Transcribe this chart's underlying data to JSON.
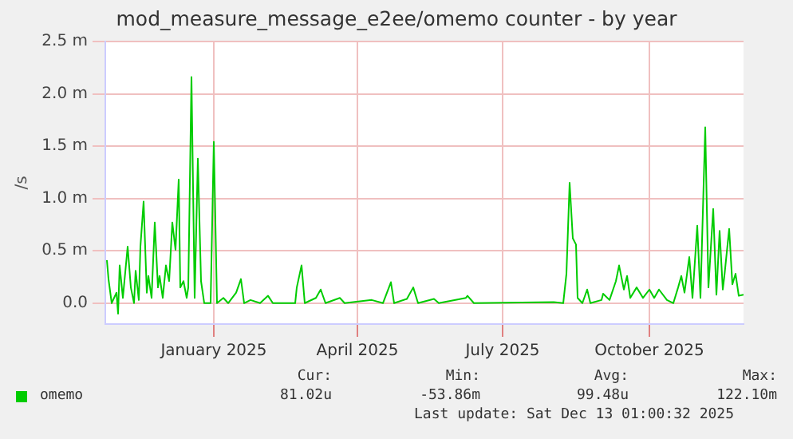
{
  "chart_data": {
    "type": "line",
    "title": "mod_measure_message_e2ee/omemo counter - by year",
    "ylabel": "/s",
    "xlim": [
      "2024-11-08",
      "2025-12-13"
    ],
    "xticks": [
      {
        "value": "2025-01-15",
        "label": "January 2025"
      },
      {
        "value": "2025-04-15",
        "label": "April 2025"
      },
      {
        "value": "2025-07-15",
        "label": "July 2025"
      },
      {
        "value": "2025-10-15",
        "label": "October 2025"
      }
    ],
    "ylim": [
      -0.2,
      2.5
    ],
    "yticks": [
      {
        "value": 0,
        "label": "0.0"
      },
      {
        "value": 0.5,
        "label": "0.5 m"
      },
      {
        "value": 1,
        "label": "1.0 m"
      },
      {
        "value": 1.5,
        "label": "1.5 m"
      },
      {
        "value": 2,
        "label": "2.0 m"
      },
      {
        "value": 2.5,
        "label": "2.5 m"
      }
    ],
    "grid": true,
    "legend": "bottom left",
    "marker": "none",
    "line_style": "solid",
    "x": [
      "2024-11-09",
      "2024-11-10",
      "2024-11-12",
      "2024-11-15",
      "2024-11-16",
      "2024-11-17",
      "2024-11-19",
      "2024-11-22",
      "2024-11-24",
      "2024-11-26",
      "2024-11-27",
      "2024-11-29",
      "2024-11-30",
      "2024-12-02",
      "2024-12-04",
      "2024-12-05",
      "2024-12-07",
      "2024-12-09",
      "2024-12-11",
      "2024-12-12",
      "2024-12-14",
      "2024-12-16",
      "2024-12-18",
      "2024-12-20",
      "2024-12-22",
      "2024-12-24",
      "2024-12-25",
      "2024-12-27",
      "2024-12-29",
      "2024-12-30",
      "2025-01-01",
      "2025-01-03",
      "2025-01-05",
      "2025-01-07",
      "2025-01-09",
      "2025-01-13",
      "2025-01-15",
      "2025-01-17",
      "2025-01-21",
      "2025-01-24",
      "2025-01-29",
      "2025-02-01",
      "2025-02-03",
      "2025-02-07",
      "2025-02-13",
      "2025-02-18",
      "2025-02-21",
      "2025-03-07",
      "2025-03-08",
      "2025-03-11",
      "2025-03-13",
      "2025-03-20",
      "2025-03-23",
      "2025-03-26",
      "2025-04-04",
      "2025-04-07",
      "2025-04-24",
      "2025-05-01",
      "2025-05-06",
      "2025-05-08",
      "2025-05-16",
      "2025-05-20",
      "2025-05-23",
      "2025-06-02",
      "2025-06-05",
      "2025-06-22",
      "2025-06-23",
      "2025-06-27",
      "2025-08-16",
      "2025-08-22",
      "2025-08-24",
      "2025-08-26",
      "2025-08-28",
      "2025-08-30",
      "2025-08-31",
      "2025-09-03",
      "2025-09-06",
      "2025-09-08",
      "2025-09-15",
      "2025-09-16",
      "2025-09-20",
      "2025-09-24",
      "2025-09-26",
      "2025-09-29",
      "2025-10-01",
      "2025-10-03",
      "2025-10-07",
      "2025-10-11",
      "2025-10-15",
      "2025-10-18",
      "2025-10-21",
      "2025-10-26",
      "2025-10-30",
      "2025-11-02",
      "2025-11-04",
      "2025-11-06",
      "2025-11-09",
      "2025-11-11",
      "2025-11-14",
      "2025-11-16",
      "2025-11-19",
      "2025-11-21",
      "2025-11-24",
      "2025-11-26",
      "2025-11-28",
      "2025-11-30",
      "2025-12-01",
      "2025-12-04",
      "2025-12-06",
      "2025-12-08",
      "2025-12-10",
      "2025-12-13"
    ],
    "series": [
      {
        "name": "omemo",
        "color": "#00cc00",
        "values": [
          0.41,
          0.23,
          0,
          0.1,
          -0.1,
          0.36,
          0.05,
          0.54,
          0.15,
          0,
          0.31,
          0.03,
          0.54,
          0.97,
          0.1,
          0.26,
          0.05,
          0.77,
          0.15,
          0.26,
          0.05,
          0.36,
          0.21,
          0.77,
          0.51,
          1.18,
          0.15,
          0.21,
          0.05,
          0.15,
          2.16,
          0.05,
          1.38,
          0.21,
          0,
          0,
          1.54,
          0,
          0.05,
          0,
          0.1,
          0.23,
          0,
          0.03,
          0,
          0.07,
          0,
          0,
          0.15,
          0.36,
          0,
          0.05,
          0.13,
          0,
          0.05,
          0,
          0.03,
          0,
          0.2,
          0,
          0.04,
          0.15,
          0,
          0.04,
          0,
          0.05,
          0.07,
          0,
          0.01,
          0,
          0.28,
          1.15,
          0.62,
          0.56,
          0.05,
          0,
          0.13,
          0,
          0.03,
          0.09,
          0.03,
          0.21,
          0.36,
          0.13,
          0.26,
          0.05,
          0.15,
          0.05,
          0.13,
          0.05,
          0.13,
          0.03,
          0,
          0.15,
          0.26,
          0.1,
          0.44,
          0.05,
          0.74,
          0.05,
          1.68,
          0.15,
          0.9,
          0.08,
          0.69,
          0.13,
          0.26,
          0.71,
          0.18,
          0.28,
          0.07,
          0.08
        ]
      }
    ],
    "annotations": [
      "Cur:",
      "Min:",
      "Avg:",
      "Max:",
      "81.02u",
      "-53.86m",
      "99.48u",
      "122.10m",
      "Last update: Sat Dec 13 01:00:32 2025"
    ]
  }
}
